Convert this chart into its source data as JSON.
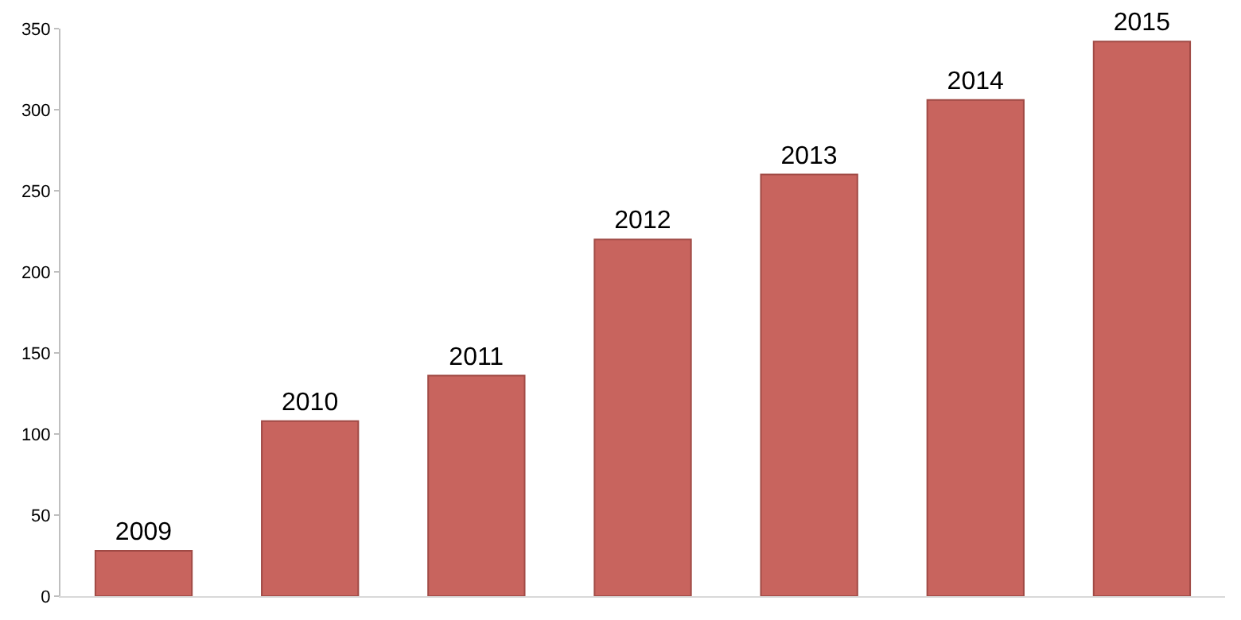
{
  "chart_data": {
    "type": "bar",
    "categories": [
      "2009",
      "2010",
      "2011",
      "2012",
      "2013",
      "2014",
      "2015"
    ],
    "values": [
      28,
      108,
      136,
      220,
      260,
      306,
      342
    ],
    "color": "#c8645e",
    "ylim": [
      0,
      350
    ],
    "yticks": [
      0,
      50,
      100,
      150,
      200,
      250,
      300,
      350
    ],
    "tick_labels": "y"
  }
}
